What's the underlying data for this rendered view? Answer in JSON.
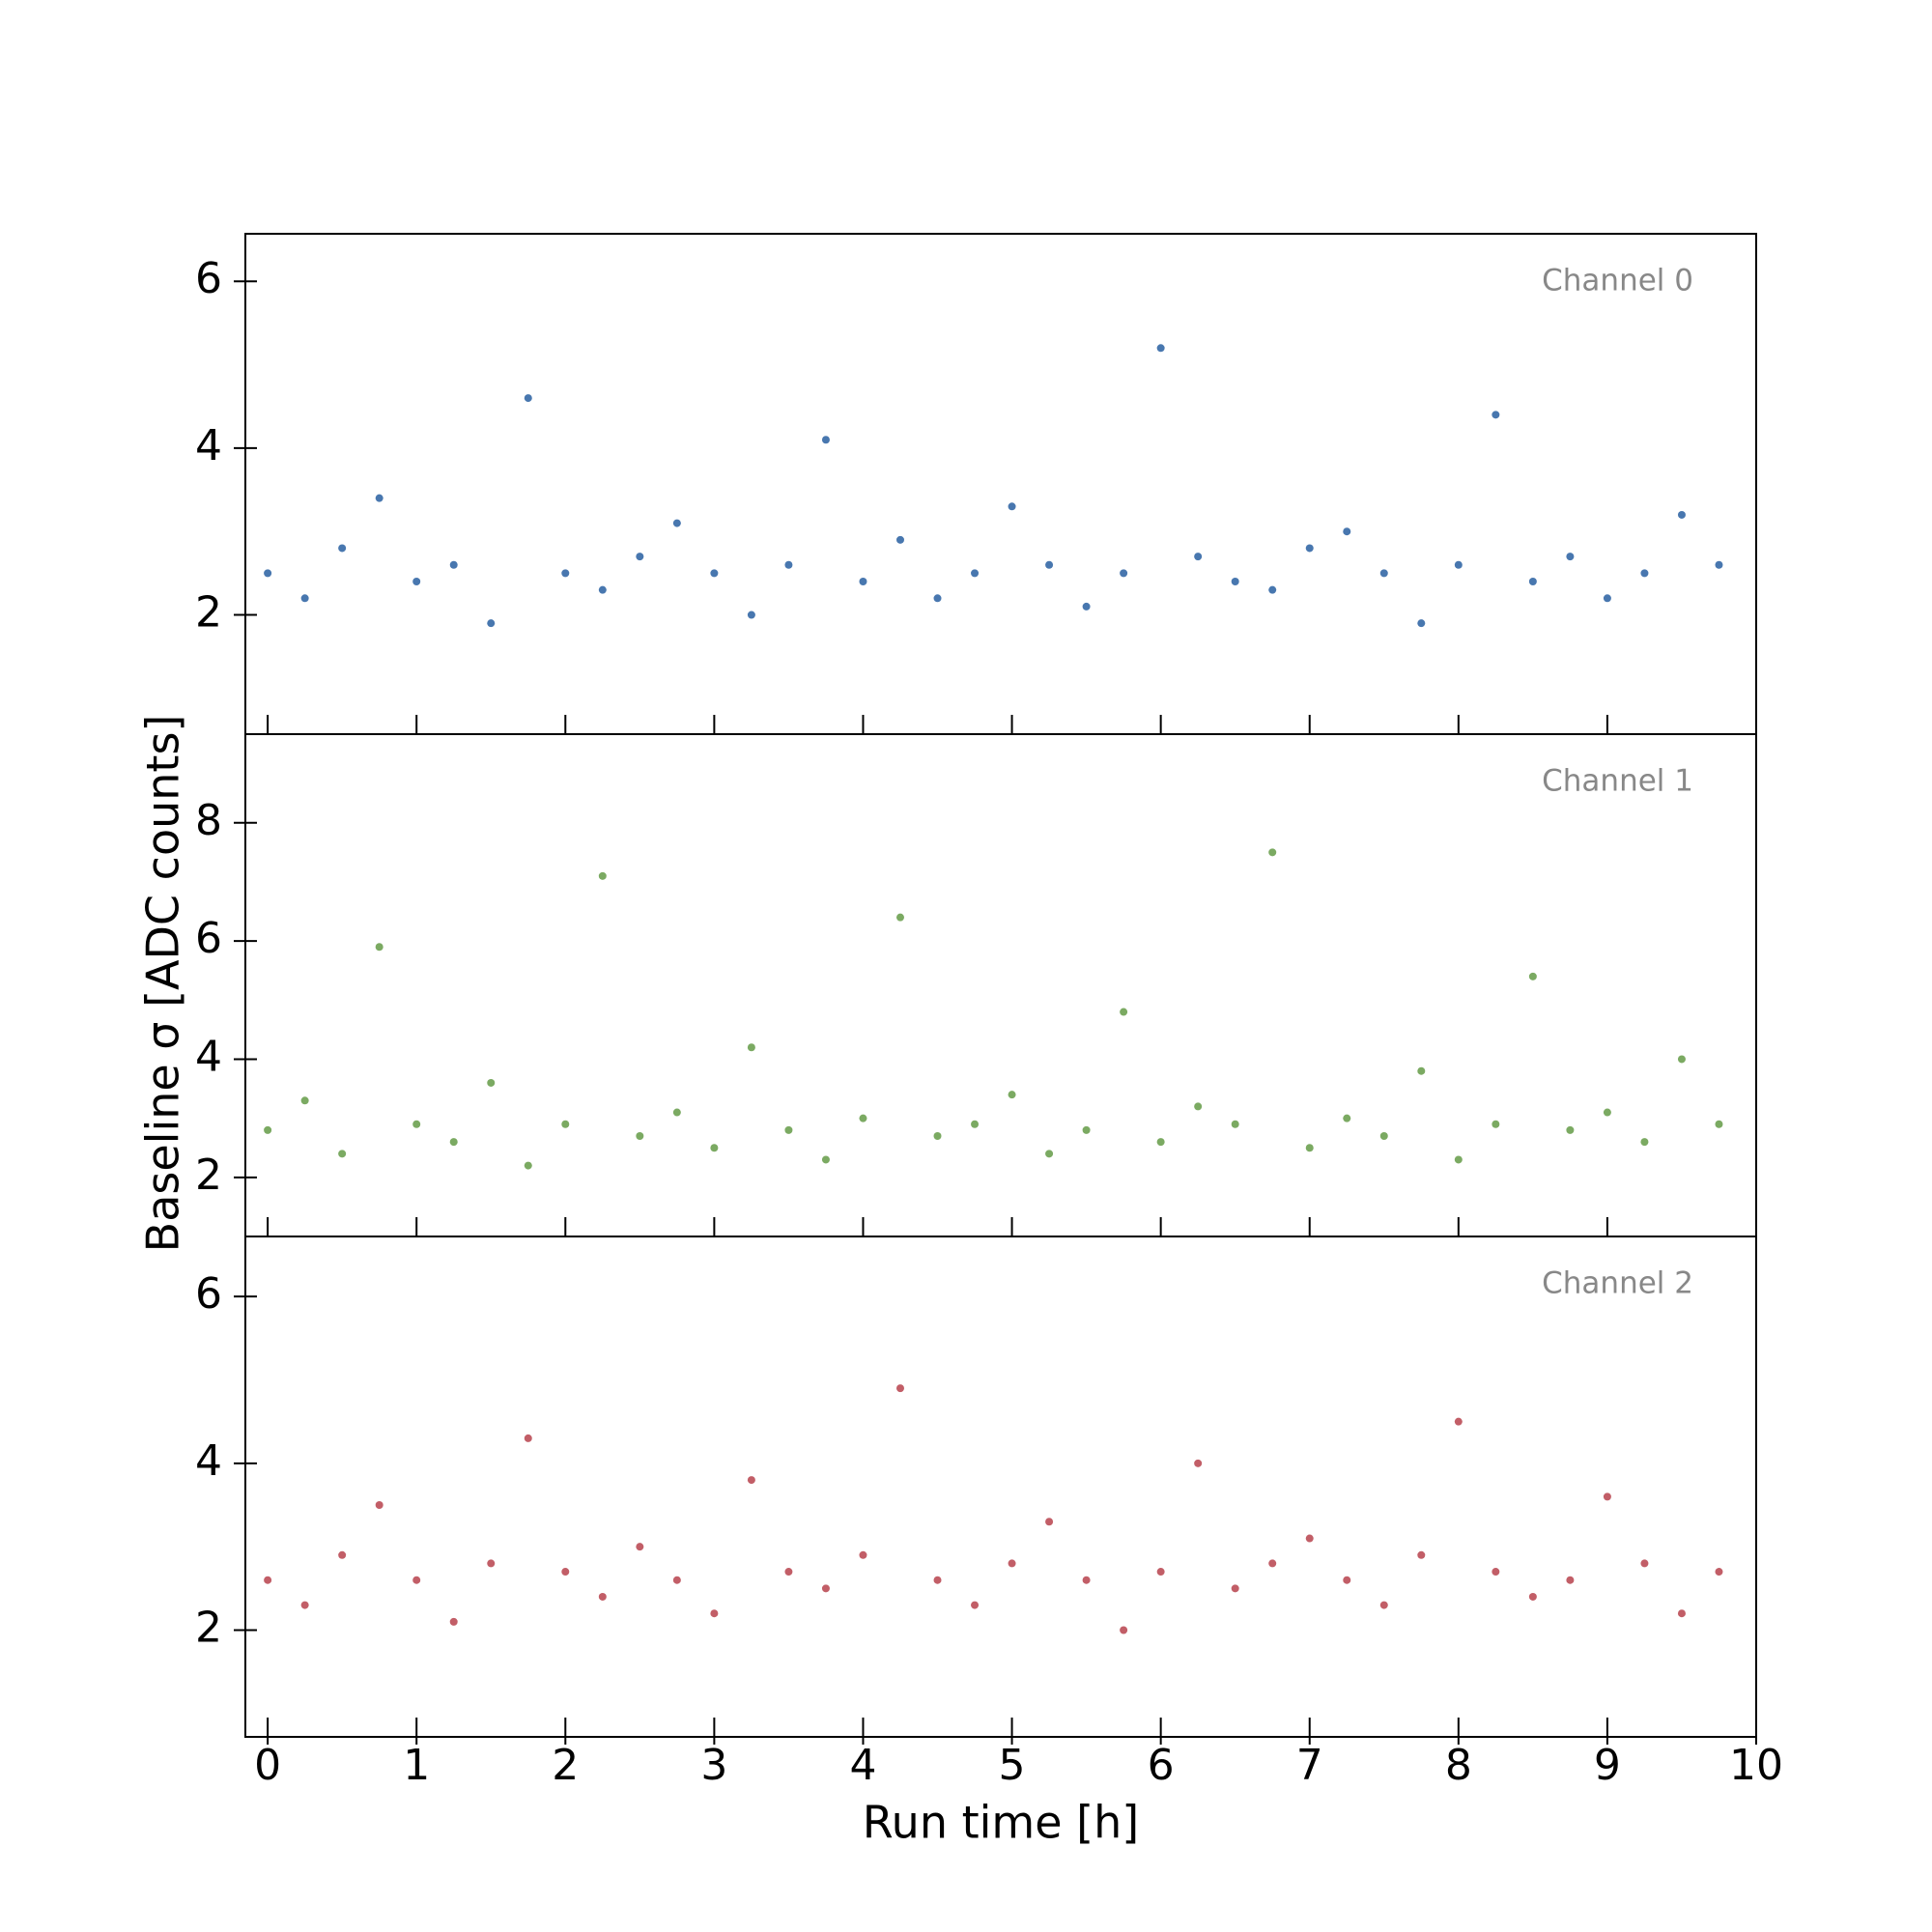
{
  "chart_data": [
    {
      "type": "scatter",
      "annotation": "Channel 0",
      "color": "#0b4a94",
      "x": [
        0,
        0.25,
        0.5,
        0.75,
        1,
        1.25,
        1.5,
        1.75,
        2,
        2.25,
        2.5,
        2.75,
        3,
        3.25,
        3.5,
        3.75,
        4,
        4.25,
        4.5,
        4.75,
        5,
        5.25,
        5.5,
        5.75,
        6,
        6.25,
        6.5,
        6.75,
        7,
        7.25,
        7.5,
        7.75,
        8,
        8.25,
        8.5,
        8.75,
        9,
        9.25,
        9.5,
        9.75
      ],
      "y": [
        2.5,
        2.2,
        2.8,
        3.4,
        2.4,
        2.6,
        1.9,
        4.6,
        2.5,
        2.3,
        2.7,
        3.1,
        2.5,
        2.0,
        2.6,
        4.1,
        2.4,
        2.9,
        2.2,
        2.5,
        3.3,
        2.6,
        2.1,
        2.5,
        5.2,
        2.7,
        2.4,
        2.3,
        2.8,
        3.0,
        2.5,
        1.9,
        2.6,
        4.4,
        2.4,
        2.7,
        2.2,
        2.5,
        3.2,
        2.6
      ],
      "xlim": [
        -0.15,
        10
      ],
      "ylim": [
        0.57,
        6.57
      ],
      "yticks": [
        2,
        4,
        6
      ]
    },
    {
      "type": "scatter",
      "annotation": "Channel 1",
      "color": "#4f8d2e",
      "ylabel": "Baseline σ [ADC counts]",
      "x": [
        0,
        0.25,
        0.5,
        0.75,
        1,
        1.25,
        1.5,
        1.75,
        2,
        2.25,
        2.5,
        2.75,
        3,
        3.25,
        3.5,
        3.75,
        4,
        4.25,
        4.5,
        4.75,
        5,
        5.25,
        5.5,
        5.75,
        6,
        6.25,
        6.5,
        6.75,
        7,
        7.25,
        7.5,
        7.75,
        8,
        8.25,
        8.5,
        8.75,
        9,
        9.25,
        9.5,
        9.75
      ],
      "y": [
        2.8,
        3.3,
        2.4,
        5.9,
        2.9,
        2.6,
        3.6,
        2.2,
        2.9,
        7.1,
        2.7,
        3.1,
        2.5,
        4.2,
        2.8,
        2.3,
        3.0,
        6.4,
        2.7,
        2.9,
        3.4,
        2.4,
        2.8,
        4.8,
        2.6,
        3.2,
        2.9,
        7.5,
        2.5,
        3.0,
        2.7,
        3.8,
        2.3,
        2.9,
        5.4,
        2.8,
        3.1,
        2.6,
        4.0,
        2.9
      ],
      "xlim": [
        -0.15,
        10
      ],
      "ylim": [
        1.0,
        9.5
      ],
      "yticks": [
        2,
        4,
        6,
        8
      ]
    },
    {
      "type": "scatter",
      "annotation": "Channel 2",
      "color": "#ae2834",
      "xlabel": "Run time [h]",
      "x": [
        0,
        0.25,
        0.5,
        0.75,
        1,
        1.25,
        1.5,
        1.75,
        2,
        2.25,
        2.5,
        2.75,
        3,
        3.25,
        3.5,
        3.75,
        4,
        4.25,
        4.5,
        4.75,
        5,
        5.25,
        5.5,
        5.75,
        6,
        6.25,
        6.5,
        6.75,
        7,
        7.25,
        7.5,
        7.75,
        8,
        8.25,
        8.5,
        8.75,
        9,
        9.25,
        9.5,
        9.75
      ],
      "y": [
        2.6,
        2.3,
        2.9,
        3.5,
        2.6,
        2.1,
        2.8,
        4.3,
        2.7,
        2.4,
        3.0,
        2.6,
        2.2,
        3.8,
        2.7,
        2.5,
        2.9,
        4.9,
        2.6,
        2.3,
        2.8,
        3.3,
        2.6,
        2.0,
        2.7,
        4.0,
        2.5,
        2.8,
        3.1,
        2.6,
        2.3,
        2.9,
        4.5,
        2.7,
        2.4,
        2.6,
        3.6,
        2.8,
        2.2,
        2.7
      ],
      "xlim": [
        -0.15,
        10
      ],
      "ylim": [
        0.72,
        6.72
      ],
      "yticks": [
        2,
        4,
        6
      ],
      "xticks": [
        0,
        1,
        2,
        3,
        4,
        5,
        6,
        7,
        8,
        9,
        10
      ]
    }
  ]
}
